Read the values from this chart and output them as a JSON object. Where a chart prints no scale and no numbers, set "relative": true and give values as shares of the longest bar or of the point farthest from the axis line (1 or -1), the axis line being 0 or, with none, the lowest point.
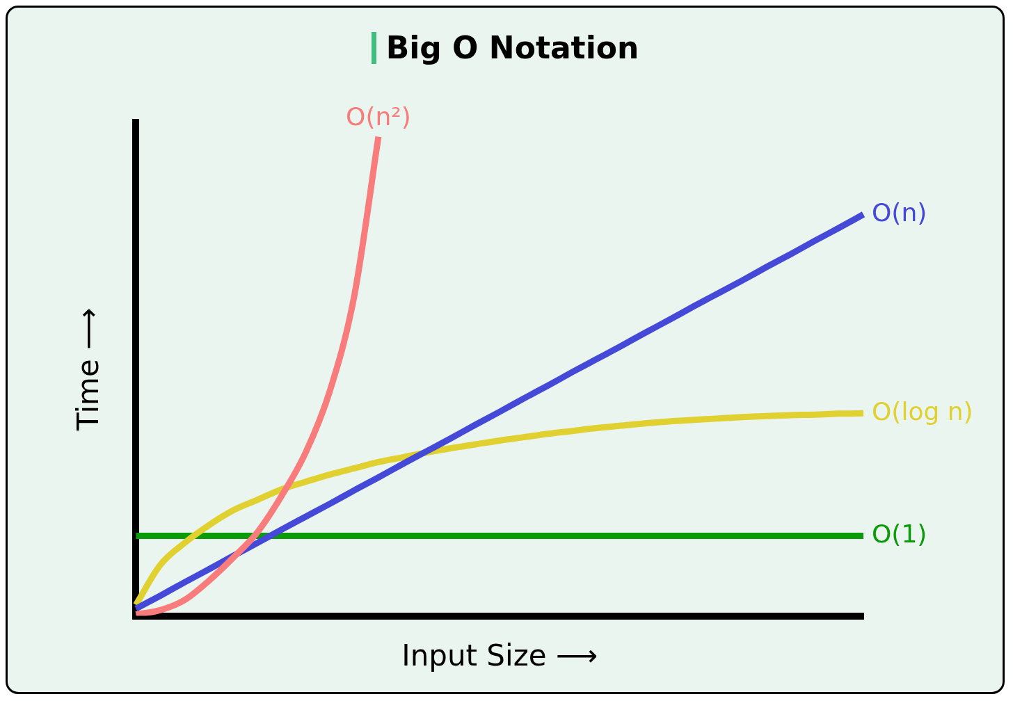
{
  "chart_data": {
    "type": "line",
    "title": "Big O Notation",
    "xlabel": "Input Size ⟶",
    "ylabel": "Time ⟶",
    "relative": true,
    "legend": false,
    "grid": false,
    "marker": "none",
    "categories": [
      null,
      null,
      null,
      null,
      null,
      null,
      null,
      null,
      null,
      null,
      null,
      null,
      null,
      null,
      null,
      null,
      null,
      null,
      null,
      null,
      null,
      null,
      null,
      null,
      null,
      null,
      null,
      null,
      null,
      null,
      null
    ],
    "series": [
      {
        "name": "O(n²)",
        "color": "#f87c7c",
        "values": [
          0.003,
          0.012,
          0.033,
          0.073,
          0.121,
          0.174,
          0.25,
          0.341,
          0.47,
          0.667,
          1.0,
          null,
          null,
          null,
          null,
          null,
          null,
          null,
          null,
          null,
          null,
          null,
          null,
          null,
          null,
          null,
          null,
          null,
          null,
          null,
          null
        ]
      },
      {
        "name": "O(n)",
        "color": "#4549d8",
        "values": [
          0.015,
          0.042,
          0.07,
          0.097,
          0.125,
          0.152,
          0.18,
          0.207,
          0.234,
          0.262,
          0.289,
          0.317,
          0.344,
          0.371,
          0.399,
          0.426,
          0.454,
          0.481,
          0.509,
          0.536,
          0.563,
          0.591,
          0.618,
          0.646,
          0.673,
          0.7,
          0.728,
          0.755,
          0.783,
          0.81,
          0.838
        ]
      },
      {
        "name": "O(log n)",
        "color": "#e0d030",
        "values": [
          0.023,
          0.106,
          0.152,
          0.189,
          0.22,
          0.242,
          0.264,
          0.28,
          0.295,
          0.308,
          0.321,
          0.331,
          0.341,
          0.35,
          0.358,
          0.366,
          0.373,
          0.38,
          0.386,
          0.392,
          0.397,
          0.402,
          0.406,
          0.409,
          0.412,
          0.415,
          0.417,
          0.419,
          0.42,
          0.422,
          0.423
        ]
      },
      {
        "name": "O(1)",
        "color": "#0a9a0a",
        "values": [
          0.167,
          0.167,
          0.167,
          0.167,
          0.167,
          0.167,
          0.167,
          0.167,
          0.167,
          0.167,
          0.167,
          0.167,
          0.167,
          0.167,
          0.167,
          0.167,
          0.167,
          0.167,
          0.167,
          0.167,
          0.167,
          0.167,
          0.167,
          0.167,
          0.167,
          0.167,
          0.167,
          0.167,
          0.167,
          0.167,
          0.167
        ]
      }
    ]
  }
}
